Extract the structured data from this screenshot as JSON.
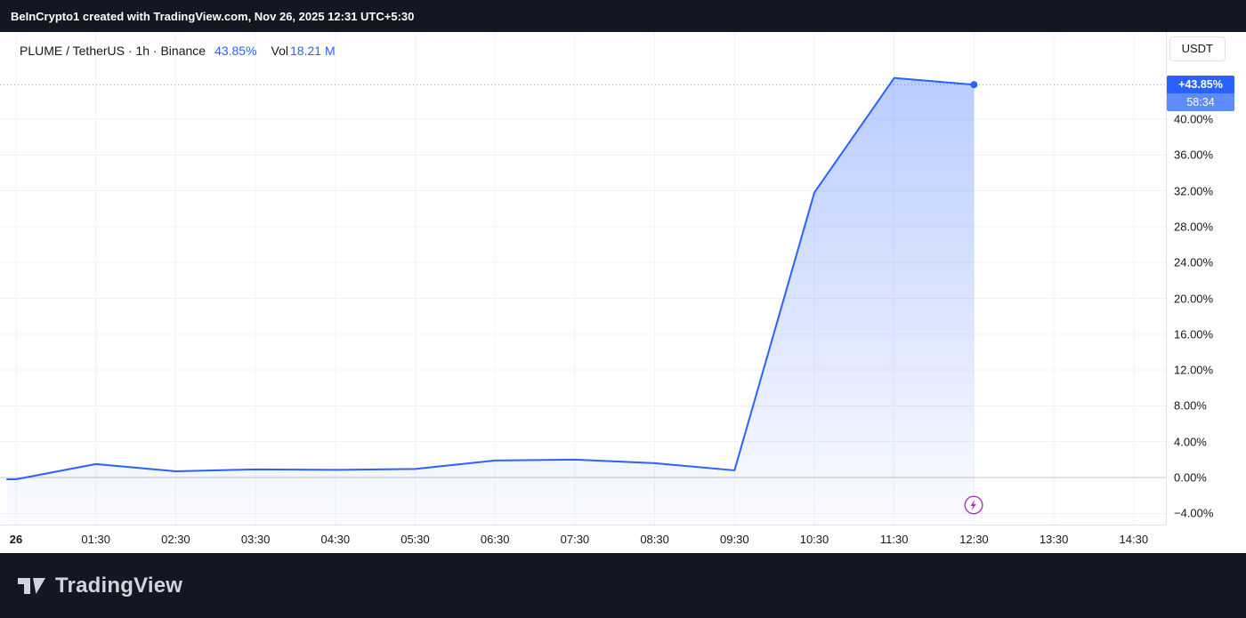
{
  "banner": {
    "text": "BeInCrypto1 created with TradingView.com, Nov 26, 2025 12:31 UTC+5:30"
  },
  "legend": {
    "title": "PLUME / TetherUS · 1h · Binance",
    "change": "43.85%",
    "vol_label": "Vol",
    "volume": "18.21 M"
  },
  "currency_button": "USDT",
  "price_badge": {
    "change": "+43.85%",
    "countdown": "58:34"
  },
  "footer": {
    "brand": "TradingView"
  },
  "colors": {
    "accent": "#2962ff",
    "accent_soft": "#5f8bfa",
    "area_top": "rgba(41,98,255,0.32)",
    "area_bottom": "rgba(41,98,255,0.02)",
    "dark": "#131722",
    "text": "#131722",
    "axis_border": "#e0e3eb",
    "gridline": "#f0f3fa",
    "zero_line": "#c4c7ce",
    "muted_light": "#d1d4dc",
    "event_marker": "#a835c2"
  },
  "chart_data": {
    "type": "area",
    "title": "PLUME / TetherUS percent change, 1h, Binance",
    "x_labels": [
      "26",
      "01:30",
      "02:30",
      "03:30",
      "04:30",
      "05:30",
      "06:30",
      "07:30",
      "08:30",
      "09:30",
      "10:30",
      "11:30",
      "12:30",
      "13:30",
      "14:30"
    ],
    "values": [
      -0.2,
      1.5,
      0.7,
      0.9,
      0.85,
      0.95,
      1.9,
      2.0,
      1.6,
      0.8,
      31.8,
      44.6,
      43.85
    ],
    "last_value": 43.85,
    "y_ticks": [
      40,
      36,
      32,
      28,
      24,
      20,
      16,
      12,
      8,
      4,
      0,
      -4
    ],
    "y_tick_labels": [
      "40.00%",
      "36.00%",
      "32.00%",
      "28.00%",
      "24.00%",
      "20.00%",
      "16.00%",
      "12.00%",
      "8.00%",
      "4.00%",
      "0.00%",
      "−4.00%"
    ],
    "ylim": [
      -5.3,
      49.7
    ],
    "grid": true,
    "legend_position": "top-left",
    "event_marker": {
      "icon": "lightning-icon",
      "x_index": 12,
      "value": -3.1
    }
  }
}
